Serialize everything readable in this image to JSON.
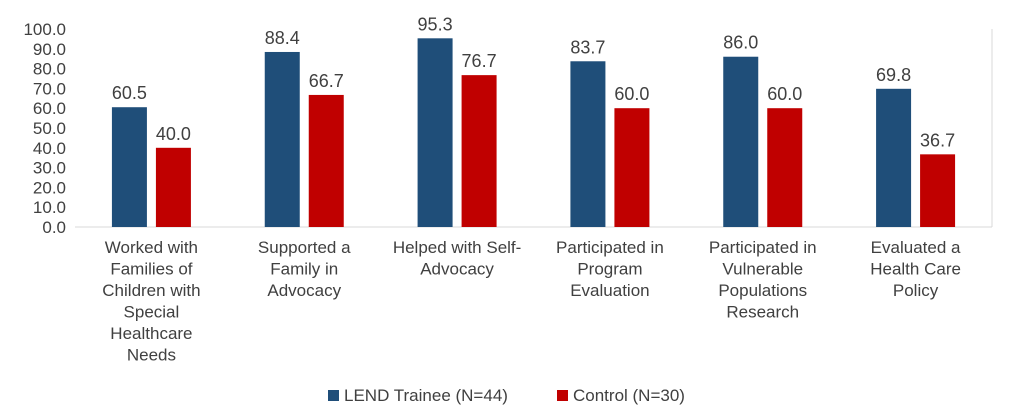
{
  "chart_data": {
    "type": "bar",
    "categories": [
      [
        "Worked with",
        "Families of",
        "Children with",
        "Special",
        "Healthcare",
        "Needs"
      ],
      [
        "Supported a",
        "Family in",
        "Advocacy"
      ],
      [
        "Helped with Self-",
        "Advocacy"
      ],
      [
        "Participated in",
        "Program",
        "Evaluation"
      ],
      [
        "Participated in",
        "Vulnerable",
        "Populations",
        "Research"
      ],
      [
        "Evaluated a",
        "Health Care",
        "Policy"
      ]
    ],
    "series": [
      {
        "name": "LEND Trainee (N=44)",
        "color": "#1F4E79",
        "values": [
          60.5,
          88.4,
          95.3,
          83.7,
          86.0,
          69.8
        ]
      },
      {
        "name": "Control (N=30)",
        "color": "#C00000",
        "values": [
          40.0,
          66.7,
          76.7,
          60.0,
          60.0,
          36.7
        ]
      }
    ],
    "ylim": [
      0,
      100
    ],
    "yticks": [
      "0.0",
      "10.0",
      "20.0",
      "30.0",
      "40.0",
      "50.0",
      "60.0",
      "70.0",
      "80.0",
      "90.0",
      "100.0"
    ],
    "grid": false,
    "legend": "bottom"
  }
}
